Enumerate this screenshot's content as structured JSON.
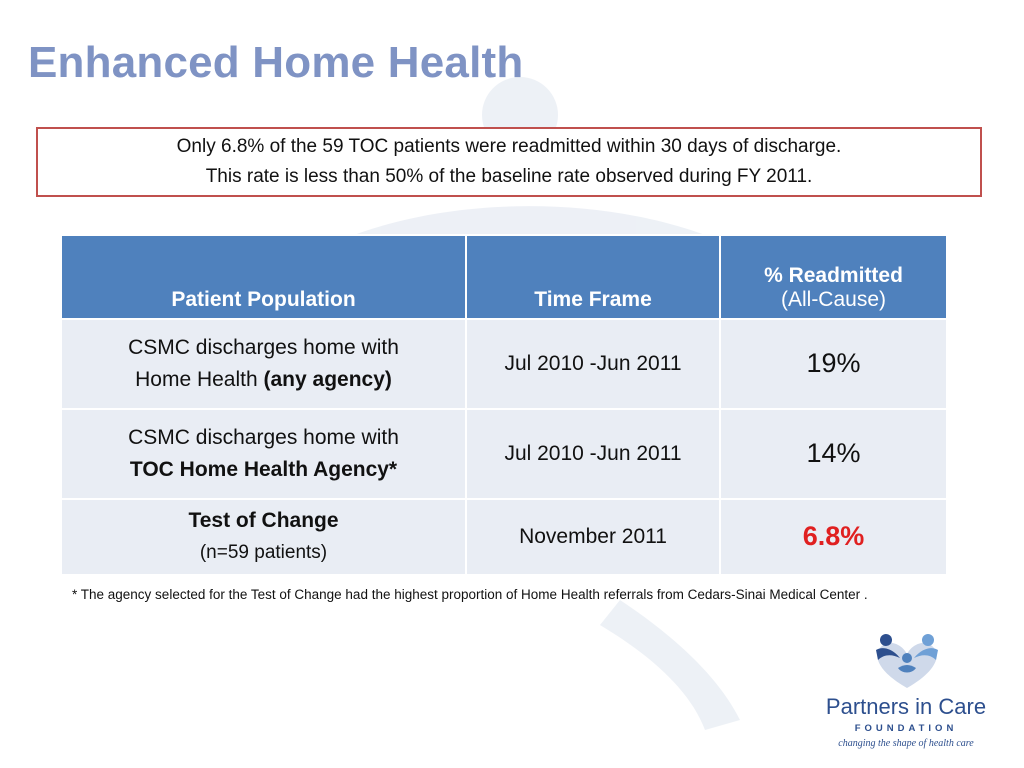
{
  "slide": {
    "title": "Enhanced Home Health",
    "callout": {
      "line1": "Only 6.8% of the 59 TOC patients were readmitted within 30 days of discharge.",
      "line2": "This rate is less than 50% of the baseline rate observed during FY 2011."
    },
    "table": {
      "headers": {
        "population": "Patient Population",
        "timeframe": "Time Frame",
        "readmitted": "% Readmitted",
        "readmitted_sub": "(All-Cause)"
      },
      "rows": [
        {
          "pop_line1": "CSMC discharges home with",
          "pop_line2_normal": "Home Health ",
          "pop_line2_bold": "(any agency)",
          "timeframe": "Jul 2010 -Jun 2011",
          "pct": "19%"
        },
        {
          "pop_line1": "CSMC discharges home with",
          "pop_line2_bold": "TOC Home Health Agency*",
          "timeframe": "Jul 2010 -Jun 2011",
          "pct": "14%"
        },
        {
          "pop_line1_bold": "Test of Change",
          "pop_line2": "(n=59 patients)",
          "timeframe": "November 2011",
          "pct": "6.8%"
        }
      ]
    },
    "footnote": "* The agency selected for the Test of Change had the highest proportion of Home Health referrals from Cedars-Sinai Medical Center ."
  },
  "logo": {
    "name": "Partners in Care",
    "sub": "FOUNDATION",
    "tagline": "changing the shape of health care"
  },
  "colors": {
    "title": "#7f93c4",
    "header_bg": "#4f81bd",
    "row_bg": "#e9edf4",
    "callout_border": "#c0504d",
    "highlight": "#e02020"
  }
}
